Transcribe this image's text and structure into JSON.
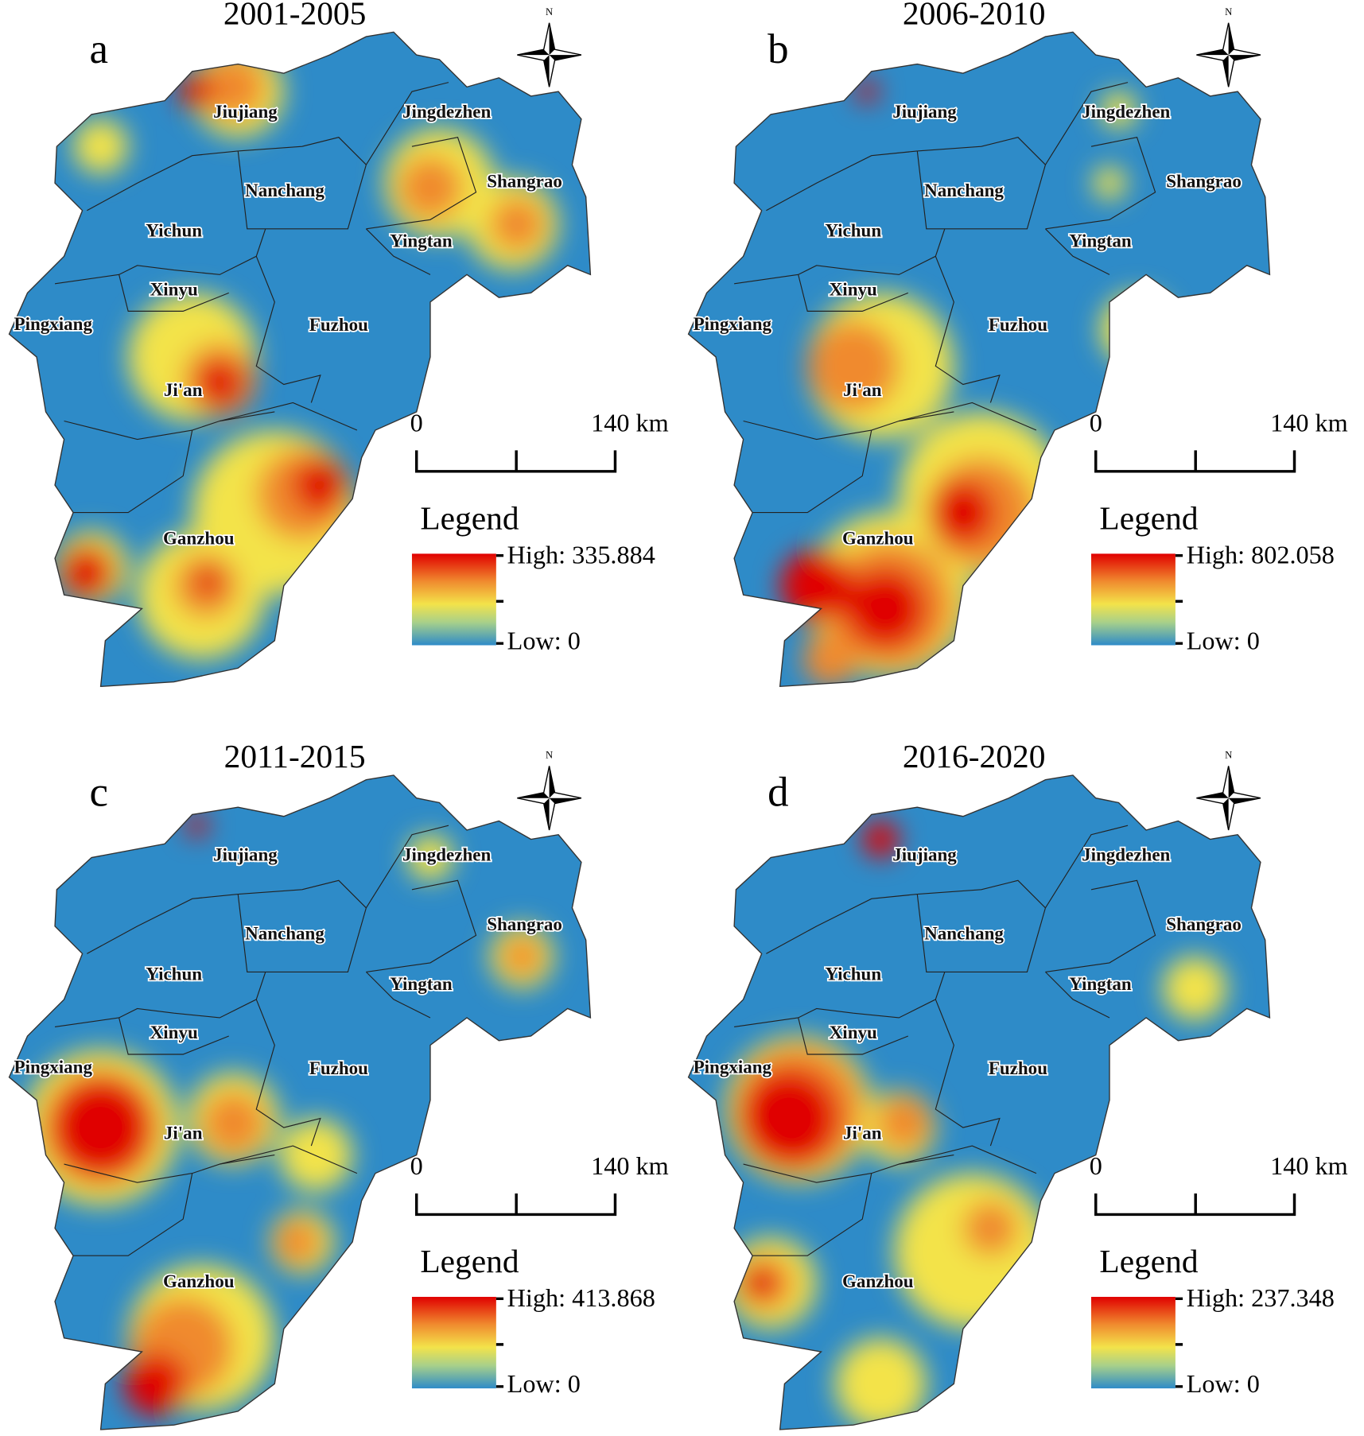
{
  "panels": [
    {
      "title": "2001-2005",
      "letter": "a",
      "north": "N",
      "cities": [
        "Jiujiang",
        "Jingdezhen",
        "Nanchang",
        "Shangrao",
        "Yichun",
        "Yingtan",
        "Xinyu",
        "Pingxiang",
        "Fuzhou",
        "Ji'an",
        "Ganzhou"
      ],
      "scale": {
        "start": "0",
        "end": "140 km"
      },
      "legend": {
        "title": "Legend",
        "high": "High: 335.884",
        "low": "Low: 0"
      }
    },
    {
      "title": "2006-2010",
      "letter": "b",
      "north": "N",
      "cities": [
        "Jiujiang",
        "Jingdezhen",
        "Nanchang",
        "Shangrao",
        "Yichun",
        "Yingtan",
        "Xinyu",
        "Pingxiang",
        "Fuzhou",
        "Ji'an",
        "Ganzhou"
      ],
      "scale": {
        "start": "0",
        "end": "140 km"
      },
      "legend": {
        "title": "Legend",
        "high": "High: 802.058",
        "low": "Low: 0"
      }
    },
    {
      "title": "2011-2015",
      "letter": "c",
      "north": "N",
      "cities": [
        "Jiujiang",
        "Jingdezhen",
        "Nanchang",
        "Shangrao",
        "Yichun",
        "Yingtan",
        "Xinyu",
        "Pingxiang",
        "Fuzhou",
        "Ji'an",
        "Ganzhou"
      ],
      "scale": {
        "start": "0",
        "end": "140 km"
      },
      "legend": {
        "title": "Legend",
        "high": "High: 413.868",
        "low": "Low: 0"
      }
    },
    {
      "title": "2016-2020",
      "letter": "d",
      "north": "N",
      "cities": [
        "Jiujiang",
        "Jingdezhen",
        "Nanchang",
        "Shangrao",
        "Yichun",
        "Yingtan",
        "Xinyu",
        "Pingxiang",
        "Fuzhou",
        "Ji'an",
        "Ganzhou"
      ],
      "scale": {
        "start": "0",
        "end": "140 km"
      },
      "legend": {
        "title": "Legend",
        "high": "High: 237.348",
        "low": "Low: 0"
      }
    }
  ]
}
